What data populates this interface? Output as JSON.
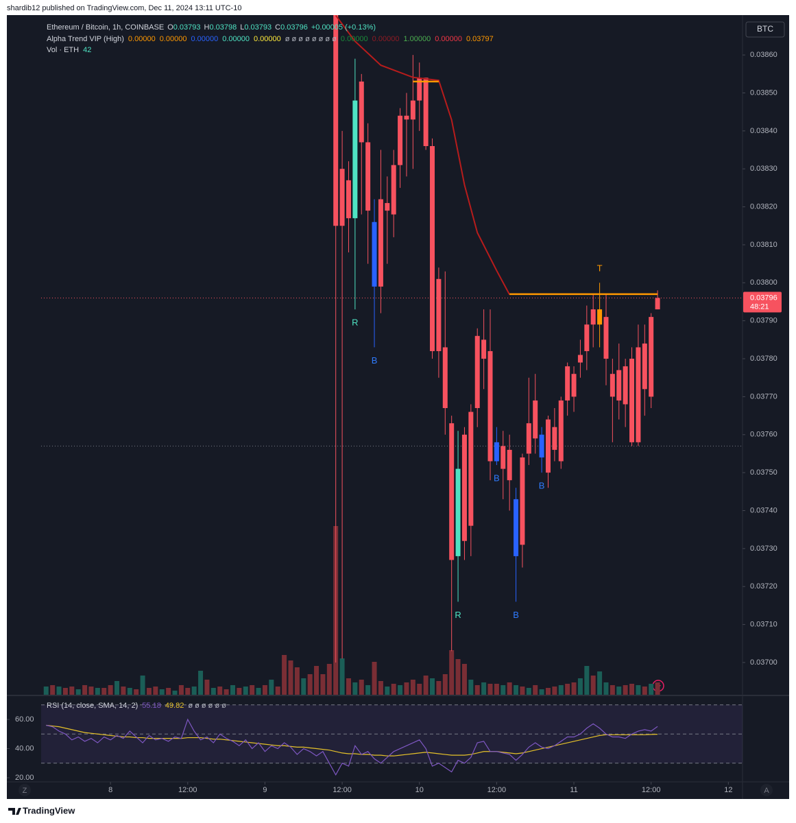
{
  "header": "shardib12 published on TradingView.com, Dec 11, 2024 13:11 UTC-10",
  "footer": "TradingView",
  "chart_data": {
    "type": "candlestick",
    "currency_button": "BTC",
    "legend": {
      "symbol": "Ethereum / Bitcoin, 1h, COINBASE",
      "ohlc": [
        {
          "key": "O",
          "value": "0.03793"
        },
        {
          "key": "H",
          "value": "0.03798"
        },
        {
          "key": "L",
          "value": "0.03793"
        },
        {
          "key": "C",
          "value": "0.03796"
        }
      ],
      "change": "+0.00005 (+0.13%)",
      "indicator": "Alpha Trend VIP (High)",
      "indicator_values": [
        {
          "text": "0.00000",
          "color": "#ff9800"
        },
        {
          "text": "0.00000",
          "color": "#ff9800"
        },
        {
          "text": "0.00000",
          "color": "#2962ff"
        },
        {
          "text": "0.00000",
          "color": "#4fe3c3"
        },
        {
          "text": "0.00000",
          "color": "#ffeb3b"
        },
        {
          "text": "ø ø ø ø ø ø ø ø",
          "color": "#b2b5be"
        },
        {
          "text": "0.00000",
          "color": "#1b8a3a"
        },
        {
          "text": "0.00000",
          "color": "#8e1b24"
        },
        {
          "text": "1.00000",
          "color": "#4caf50"
        },
        {
          "text": "0.00000",
          "color": "#f23645"
        },
        {
          "text": "0.03797",
          "color": "#ff9800"
        }
      ],
      "volume_label": "Vol · ETH",
      "volume_value": "42"
    },
    "price_tag": {
      "value": "0.03796",
      "countdown": "48:21"
    },
    "xlim": [
      -16.1,
      98.2
    ],
    "xticks": [
      {
        "value": 0,
        "label": "8"
      },
      {
        "value": 12,
        "label": "12:00"
      },
      {
        "value": 24,
        "label": "9"
      },
      {
        "value": 36,
        "label": "12:00"
      },
      {
        "value": 48,
        "label": "10"
      },
      {
        "value": 60,
        "label": "12:00"
      },
      {
        "value": 72,
        "label": "11"
      },
      {
        "value": 84,
        "label": "12:00"
      },
      {
        "value": 96,
        "label": "12"
      }
    ],
    "ylim": [
      0.036915,
      0.038705
    ],
    "yticks": [
      {
        "value": 0.037,
        "label": "0.03700"
      },
      {
        "value": 0.0371,
        "label": "0.03710"
      },
      {
        "value": 0.0372,
        "label": "0.03720"
      },
      {
        "value": 0.0373,
        "label": "0.03730"
      },
      {
        "value": 0.0374,
        "label": "0.03740"
      },
      {
        "value": 0.0375,
        "label": "0.03750"
      },
      {
        "value": 0.0376,
        "label": "0.03760"
      },
      {
        "value": 0.0377,
        "label": "0.03770"
      },
      {
        "value": 0.0378,
        "label": "0.03780"
      },
      {
        "value": 0.0379,
        "label": "0.03790"
      },
      {
        "value": 0.038,
        "label": "0.03800"
      },
      {
        "value": 0.0381,
        "label": "0.03810"
      },
      {
        "value": 0.0382,
        "label": "0.03820"
      },
      {
        "value": 0.0383,
        "label": "0.03830"
      },
      {
        "value": 0.0384,
        "label": "0.03840"
      },
      {
        "value": 0.0385,
        "label": "0.03850"
      },
      {
        "value": 0.0386,
        "label": "0.03860"
      }
    ],
    "candles": {
      "x": [
        35,
        36,
        37,
        38,
        39,
        40,
        41,
        42,
        43,
        44,
        45,
        46,
        47,
        48,
        49,
        50,
        51,
        52,
        53,
        54,
        55,
        56,
        57,
        58,
        59,
        60,
        61,
        62,
        63,
        64,
        65,
        66,
        67,
        68,
        69,
        70,
        71,
        72,
        73,
        74,
        75,
        76,
        77,
        78,
        79,
        80,
        81,
        82,
        83,
        84,
        85
      ],
      "open": [
        0.03875,
        0.0383,
        0.03827,
        0.03817,
        0.03853,
        0.03837,
        0.03816,
        0.03822,
        0.03821,
        0.03818,
        0.03831,
        0.03844,
        0.03843,
        0.03848,
        0.03854,
        0.03836,
        0.03801,
        0.03783,
        0.03763,
        0.03728,
        0.0376,
        0.03766,
        0.03786,
        0.03785,
        0.03782,
        0.03758,
        0.03757,
        0.03756,
        0.03743,
        0.03754,
        0.03763,
        0.03769,
        0.0376,
        0.03764,
        0.03762,
        0.03769,
        0.03778,
        0.03776,
        0.03781,
        0.03789,
        0.03793,
        0.03793,
        0.03791,
        0.03776,
        0.03777,
        0.03778,
        0.0378,
        0.03783,
        0.03784,
        0.03791,
        0.03793
      ],
      "high": [
        0.0388,
        0.0384,
        0.03832,
        0.03859,
        0.03855,
        0.03842,
        0.03822,
        0.03835,
        0.03828,
        0.03835,
        0.03846,
        0.0385,
        0.0386,
        0.03858,
        0.03854,
        0.03838,
        0.03804,
        0.03803,
        0.03765,
        0.03761,
        0.03762,
        0.03768,
        0.03788,
        0.03793,
        0.03793,
        0.03762,
        0.03761,
        0.0376,
        0.03746,
        0.03755,
        0.03775,
        0.03776,
        0.03762,
        0.03765,
        0.03767,
        0.0377,
        0.03779,
        0.03778,
        0.03785,
        0.03794,
        0.03797,
        0.038,
        0.03797,
        0.0378,
        0.03784,
        0.0378,
        0.03783,
        0.03789,
        0.03789,
        0.03792,
        0.03798
      ],
      "low": [
        0.037,
        0.03701,
        0.03808,
        0.03793,
        0.03818,
        0.03805,
        0.03783,
        0.03792,
        0.03805,
        0.03812,
        0.03825,
        0.03828,
        0.0383,
        0.0384,
        0.03835,
        0.0378,
        0.03775,
        0.0376,
        0.03703,
        0.03716,
        0.03727,
        0.03728,
        0.03762,
        0.03772,
        0.03748,
        0.03752,
        0.03743,
        0.0374,
        0.03716,
        0.03725,
        0.03752,
        0.03755,
        0.0375,
        0.03746,
        0.03753,
        0.03751,
        0.03765,
        0.03766,
        0.03775,
        0.03777,
        0.03783,
        0.03783,
        0.03773,
        0.03758,
        0.03764,
        0.03762,
        0.03757,
        0.03757,
        0.03765,
        0.03767,
        0.03793
      ],
      "close": [
        0.03815,
        0.03815,
        0.03817,
        0.03848,
        0.03837,
        0.03819,
        0.03799,
        0.03799,
        0.03819,
        0.03831,
        0.03844,
        0.03843,
        0.03848,
        0.03854,
        0.03836,
        0.03782,
        0.03782,
        0.03767,
        0.03727,
        0.03751,
        0.03732,
        0.03736,
        0.03767,
        0.0378,
        0.03753,
        0.03753,
        0.03751,
        0.03748,
        0.03728,
        0.03731,
        0.03755,
        0.03759,
        0.03754,
        0.0375,
        0.03756,
        0.03753,
        0.03769,
        0.0377,
        0.03779,
        0.03782,
        0.03789,
        0.03789,
        0.0378,
        0.0377,
        0.03769,
        0.03768,
        0.03758,
        0.03758,
        0.03772,
        0.0377,
        0.03796
      ],
      "colors": [
        "#f7525f",
        "#f7525f",
        "#f7525f",
        "#4fe3c3",
        "#f7525f",
        "#f7525f",
        "#2962ff",
        "#f7525f",
        "#f7525f",
        "#f7525f",
        "#f7525f",
        "#f7525f",
        "#f7525f",
        "#f7525f",
        "#f7525f",
        "#f7525f",
        "#f7525f",
        "#f7525f",
        "#f7525f",
        "#4fe3c3",
        "#f7525f",
        "#f7525f",
        "#f7525f",
        "#f7525f",
        "#f7525f",
        "#2962ff",
        "#f7525f",
        "#f7525f",
        "#2962ff",
        "#f7525f",
        "#f7525f",
        "#f7525f",
        "#2962ff",
        "#f7525f",
        "#f7525f",
        "#f7525f",
        "#f7525f",
        "#f7525f",
        "#f7525f",
        "#f7525f",
        "#f7525f",
        "#ff9800",
        "#f7525f",
        "#f7525f",
        "#f7525f",
        "#f7525f",
        "#f7525f",
        "#f7525f",
        "#f7525f",
        "#f7525f",
        "#f7525f"
      ]
    },
    "trend_line": {
      "color": "#b71c1c",
      "x": [
        35,
        38,
        42,
        47,
        51,
        53,
        55,
        57,
        60,
        62
      ],
      "values": [
        0.038704,
        0.038636,
        0.038573,
        0.038541,
        0.038533,
        0.038429,
        0.038258,
        0.038132,
        0.038032,
        0.037969
      ]
    },
    "levels": [
      {
        "x": [
          47,
          51
        ],
        "value": 0.03853,
        "color": "#ff9800"
      },
      {
        "x": [
          62,
          85
        ],
        "value": 0.03797,
        "color": "#ff9800"
      }
    ],
    "hlines": [
      {
        "value": 0.03796,
        "color": "#f7525f"
      },
      {
        "value": 0.03757,
        "color": "#787b86"
      }
    ],
    "signals": [
      {
        "label": "R",
        "x": 38,
        "position": "below",
        "color": "#4fe3c3"
      },
      {
        "label": "B",
        "x": 41,
        "position": "below",
        "color": "#2f7bff"
      },
      {
        "label": "R",
        "x": 54,
        "position": "below",
        "color": "#4fe3c3"
      },
      {
        "label": "B",
        "x": 60,
        "position": "below",
        "color": "#2f7bff"
      },
      {
        "label": "B",
        "x": 63,
        "position": "below",
        "color": "#2f7bff"
      },
      {
        "label": "B",
        "x": 67,
        "position": "below",
        "color": "#2f7bff"
      },
      {
        "label": "T",
        "x": 76,
        "position": "above",
        "color": "#ff9800"
      }
    ],
    "volume": {
      "ylim": [
        0,
        991
      ],
      "x": [
        -10,
        -9,
        -8,
        -7,
        -6,
        -5,
        -4,
        -3,
        -2,
        -1,
        0,
        1,
        2,
        3,
        4,
        5,
        6,
        7,
        8,
        9,
        10,
        11,
        12,
        13,
        14,
        15,
        16,
        17,
        18,
        19,
        20,
        21,
        22,
        23,
        24,
        25,
        26,
        27,
        28,
        29,
        30,
        31,
        32,
        33,
        34,
        35,
        36,
        37,
        38,
        39,
        40,
        41,
        42,
        43,
        44,
        45,
        46,
        47,
        48,
        49,
        50,
        51,
        52,
        53,
        54,
        55,
        56,
        57,
        58,
        59,
        60,
        61,
        62,
        63,
        64,
        65,
        66,
        67,
        68,
        69,
        70,
        71,
        72,
        73,
        74,
        75,
        76,
        77,
        78,
        79,
        80,
        81,
        82,
        83,
        84,
        85
      ],
      "values": [
        12,
        14,
        12,
        10,
        12,
        8,
        14,
        12,
        10,
        10,
        14,
        20,
        12,
        10,
        8,
        28,
        10,
        12,
        8,
        10,
        6,
        14,
        10,
        12,
        35,
        22,
        10,
        12,
        8,
        14,
        10,
        12,
        14,
        10,
        14,
        22,
        12,
        58,
        50,
        40,
        24,
        30,
        42,
        30,
        45,
        246,
        53,
        24,
        18,
        22,
        14,
        48,
        20,
        12,
        16,
        14,
        18,
        22,
        16,
        28,
        24,
        20,
        30,
        65,
        52,
        45,
        22,
        14,
        18,
        16,
        16,
        14,
        18,
        14,
        12,
        10,
        14,
        8,
        10,
        12,
        14,
        16,
        18,
        24,
        42,
        28,
        34,
        18,
        14,
        12,
        14,
        16,
        14,
        12,
        16,
        18
      ],
      "colors": [
        "#1b5e57",
        "#7a2e35",
        "#1b5e57",
        "#7a2e35",
        "#7a2e35",
        "#1b5e57",
        "#7a2e35",
        "#7a2e35",
        "#1b5e57",
        "#7a2e35",
        "#7a2e35",
        "#1b5e57",
        "#7a2e35",
        "#1b5e57",
        "#7a2e35",
        "#1b5e57",
        "#7a2e35",
        "#7a2e35",
        "#1b5e57",
        "#7a2e35",
        "#1b5e57",
        "#7a2e35",
        "#7a2e35",
        "#1b5e57",
        "#1b5e57",
        "#7a2e35",
        "#1b5e57",
        "#7a2e35",
        "#7a2e35",
        "#1b5e57",
        "#7a2e35",
        "#1b5e57",
        "#7a2e35",
        "#1b5e57",
        "#7a2e35",
        "#1b5e57",
        "#7a2e35",
        "#7a2e35",
        "#7a2e35",
        "#7a2e35",
        "#1b5e57",
        "#7a2e35",
        "#7a2e35",
        "#7a2e35",
        "#7a2e35",
        "#7a2e35",
        "#1b5e57",
        "#7a2e35",
        "#1b5e57",
        "#7a2e35",
        "#1b5e57",
        "#7a2e35",
        "#7a2e35",
        "#1b5e57",
        "#7a2e35",
        "#1b5e57",
        "#7a2e35",
        "#7a2e35",
        "#7a2e35",
        "#7a2e35",
        "#1b5e57",
        "#7a2e35",
        "#7a2e35",
        "#7a2e35",
        "#7a2e35",
        "#7a2e35",
        "#1b5e57",
        "#7a2e35",
        "#1b5e57",
        "#7a2e35",
        "#7a2e35",
        "#1b5e57",
        "#7a2e35",
        "#1b5e57",
        "#7a2e35",
        "#1b5e57",
        "#7a2e35",
        "#1b5e57",
        "#7a2e35",
        "#7a2e35",
        "#1b5e57",
        "#7a2e35",
        "#7a2e35",
        "#1b5e57",
        "#1b5e57",
        "#7a2e35",
        "#1b5e57",
        "#1b5e57",
        "#7a2e35",
        "#1b5e57",
        "#7a2e35",
        "#7a2e35",
        "#1b5e57",
        "#7a2e35",
        "#1b5e57",
        "#7a2e35"
      ]
    },
    "rsi": {
      "title": "RSI (14, close, SMA, 14, 2)",
      "value_text": "55.18",
      "sma_text": "49.82",
      "extra": "ø ø ø ø ø ø",
      "ylim": [
        17.2,
        76
      ],
      "yticks": [
        {
          "value": 60,
          "label": "60.00"
        },
        {
          "value": 40,
          "label": "40.00"
        },
        {
          "value": 20,
          "label": "20.00"
        }
      ],
      "bands": [
        70,
        50,
        30
      ],
      "color": "#7e57c2",
      "sma_color": "#e6c229",
      "x": [
        -10,
        -9,
        -8,
        -7,
        -6,
        -5,
        -4,
        -3,
        -2,
        -1,
        0,
        1,
        2,
        3,
        4,
        5,
        6,
        7,
        8,
        9,
        10,
        11,
        12,
        13,
        14,
        15,
        16,
        17,
        18,
        19,
        20,
        21,
        22,
        23,
        24,
        25,
        26,
        27,
        28,
        29,
        30,
        31,
        32,
        33,
        34,
        35,
        36,
        37,
        38,
        39,
        40,
        41,
        42,
        43,
        44,
        45,
        46,
        47,
        48,
        49,
        50,
        51,
        52,
        53,
        54,
        55,
        56,
        57,
        58,
        59,
        60,
        61,
        62,
        63,
        64,
        65,
        66,
        67,
        68,
        69,
        70,
        71,
        72,
        73,
        74,
        75,
        76,
        77,
        78,
        79,
        80,
        81,
        82,
        83,
        84,
        85
      ],
      "values": [
        56,
        55,
        52,
        50,
        46,
        48,
        45,
        47,
        44,
        48,
        46,
        49,
        47,
        52,
        48,
        44,
        49,
        46,
        47,
        45,
        48,
        47,
        60,
        52,
        46,
        48,
        44,
        50,
        47,
        45,
        42,
        46,
        40,
        44,
        38,
        42,
        40,
        44,
        41,
        36,
        40,
        38,
        35,
        38,
        30,
        22,
        30,
        28,
        42,
        36,
        38,
        33,
        30,
        34,
        38,
        40,
        42,
        44,
        46,
        40,
        28,
        30,
        27,
        24,
        32,
        30,
        34,
        44,
        45,
        38,
        38,
        37,
        36,
        32,
        36,
        41,
        44,
        41,
        40,
        42,
        45,
        48,
        48,
        50,
        54,
        57,
        54,
        50,
        48,
        48,
        47,
        50,
        52,
        53,
        52,
        55.18
      ],
      "sma": [
        56,
        55.5,
        55,
        54,
        53,
        52,
        51,
        50.5,
        50,
        49.5,
        49,
        48.5,
        48,
        48,
        47.5,
        47.5,
        47,
        47,
        47,
        47,
        47,
        47,
        47.5,
        47.5,
        47.5,
        47,
        46.5,
        46.5,
        46,
        45.5,
        45,
        44.5,
        44,
        43.5,
        43,
        42.5,
        42,
        42,
        41.5,
        41,
        41,
        40.5,
        40,
        39.5,
        39,
        38,
        37,
        36.5,
        36.5,
        36,
        36,
        35.5,
        35.5,
        35,
        35,
        35.5,
        36,
        36.5,
        37,
        37.5,
        37,
        36.5,
        36,
        35.5,
        35.5,
        35.5,
        36,
        37,
        38,
        38,
        38,
        37.5,
        37,
        36.5,
        37,
        38,
        39,
        40,
        41,
        42,
        43,
        44,
        45,
        46,
        47,
        48,
        49,
        49.5,
        49.5,
        49.5,
        49.5,
        49.5,
        49.5,
        49.5,
        49.7,
        49.82
      ]
    },
    "corner_buttons": [
      "Z",
      "A"
    ]
  }
}
